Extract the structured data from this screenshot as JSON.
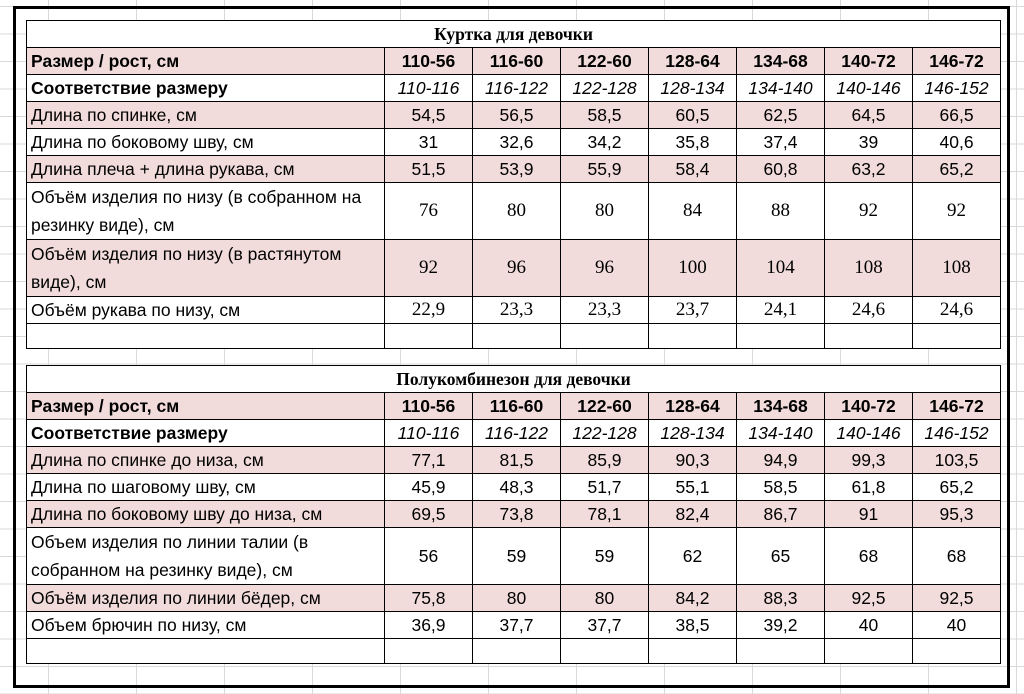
{
  "tables": [
    {
      "title": "Куртка для девочки",
      "header": {
        "label": "Размер / рост, см",
        "values": [
          "110-56",
          "116-60",
          "122-60",
          "128-64",
          "134-68",
          "140-72",
          "146-72"
        ]
      },
      "mapping": {
        "label": "Соответствие размеру",
        "values": [
          "110-116",
          "116-122",
          "122-128",
          "128-134",
          "134-140",
          "140-146",
          "146-152"
        ]
      },
      "rows": [
        {
          "label": "Длина по спинке, см",
          "values": [
            "54,5",
            "56,5",
            "58,5",
            "60,5",
            "62,5",
            "64,5",
            "66,5"
          ]
        },
        {
          "label": "Длина по боковому шву, см",
          "values": [
            "31",
            "32,6",
            "34,2",
            "35,8",
            "37,4",
            "39",
            "40,6"
          ]
        },
        {
          "label": "Длина плеча + длина рукава, см",
          "values": [
            "51,5",
            "53,9",
            "55,9",
            "58,4",
            "60,8",
            "63,2",
            "65,2"
          ]
        },
        {
          "label": "Объём изделия по низу (в собранном на резинку виде), см",
          "values": [
            "76",
            "80",
            "80",
            "84",
            "88",
            "92",
            "92"
          ]
        },
        {
          "label": "Объём изделия по низу (в растянутом виде), см",
          "values": [
            "92",
            "96",
            "96",
            "100",
            "104",
            "108",
            "108"
          ]
        },
        {
          "label": "Объём рукава по низу, см",
          "values": [
            "22,9",
            "23,3",
            "23,3",
            "23,7",
            "24,1",
            "24,6",
            "24,6"
          ]
        }
      ]
    },
    {
      "title": "Полукомбинезон для девочки",
      "header": {
        "label": "Размер / рост, см",
        "values": [
          "110-56",
          "116-60",
          "122-60",
          "128-64",
          "134-68",
          "140-72",
          "146-72"
        ]
      },
      "mapping": {
        "label": "Соответствие размеру",
        "values": [
          "110-116",
          "116-122",
          "122-128",
          "128-134",
          "134-140",
          "140-146",
          "146-152"
        ]
      },
      "rows": [
        {
          "label": "Длина по спинке до низа, см",
          "values": [
            "77,1",
            "81,5",
            "85,9",
            "90,3",
            "94,9",
            "99,3",
            "103,5"
          ]
        },
        {
          "label": "Длина по шаговому шву, см",
          "values": [
            "45,9",
            "48,3",
            "51,7",
            "55,1",
            "58,5",
            "61,8",
            "65,2"
          ]
        },
        {
          "label": "Длина по боковому шву до низа, см",
          "values": [
            "69,5",
            "73,8",
            "78,1",
            "82,4",
            "86,7",
            "91",
            "95,3"
          ]
        },
        {
          "label": "Объем изделия по линии талии (в собранном на резинку виде), см",
          "values": [
            "56",
            "59",
            "59",
            "62",
            "65",
            "68",
            "68"
          ]
        },
        {
          "label": "Объём изделия по линии бёдер, см",
          "values": [
            "75,8",
            "80",
            "80",
            "84,2",
            "88,3",
            "92,5",
            "92,5"
          ]
        },
        {
          "label": "Объем брючин по низу, см",
          "values": [
            "36,9",
            "37,7",
            "37,7",
            "38,5",
            "39,2",
            "40",
            "40"
          ]
        }
      ]
    }
  ],
  "colors": {
    "highlight_row": "#f2dcdb",
    "border": "#000000",
    "grid": "#d9d9d9"
  }
}
